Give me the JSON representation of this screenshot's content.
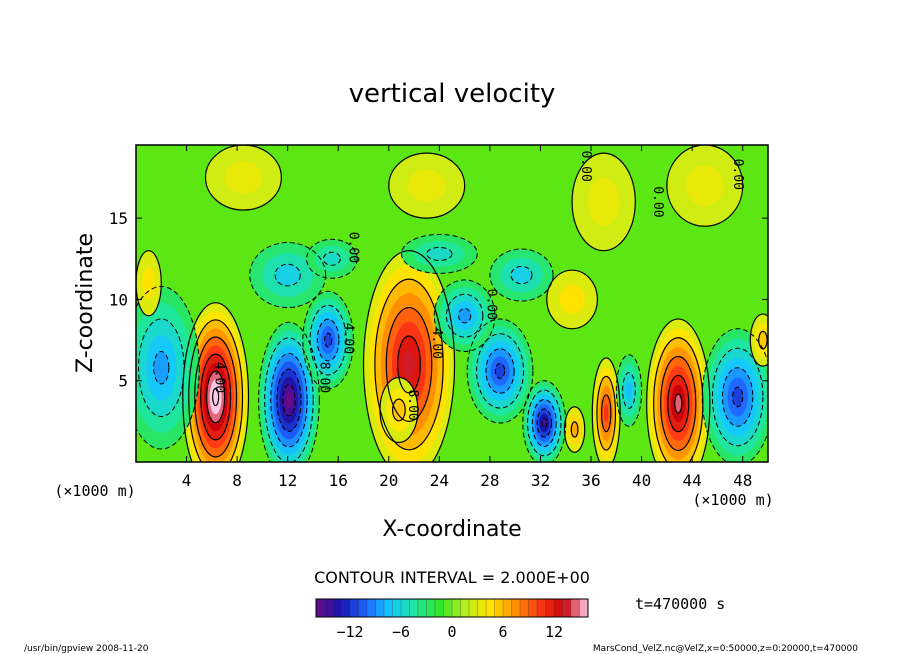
{
  "chart_data": {
    "type": "heatmap",
    "title": "vertical velocity",
    "xlabel": "X-coordinate",
    "ylabel": "Z-coordinate",
    "x_unit_left": "(×1000 m)",
    "x_unit_right": "(×1000 m)",
    "xlim": [
      0,
      50
    ],
    "ylim": [
      0,
      19.5
    ],
    "x_ticks": [
      4,
      8,
      12,
      16,
      20,
      24,
      28,
      32,
      36,
      40,
      44,
      48
    ],
    "y_ticks": [
      5,
      10,
      15
    ],
    "contour_interval_text": "CONTOUR INTERVAL = 2.000E+00",
    "contour_labels": [
      {
        "text": "4.00",
        "x": 6.3,
        "z": 5.2
      },
      {
        "text": "8.00",
        "x": 14.6,
        "z": 5.2
      },
      {
        "text": "4.00",
        "x": 16.5,
        "z": 7.6
      },
      {
        "text": "0.00",
        "x": 16.9,
        "z": 13.2
      },
      {
        "text": "4.00",
        "x": 23.5,
        "z": 7.3
      },
      {
        "text": "8.00",
        "x": 21.6,
        "z": 3.5
      },
      {
        "text": "0.00",
        "x": 27.8,
        "z": 9.7
      },
      {
        "text": "0.00",
        "x": 35.3,
        "z": 18.2
      },
      {
        "text": "0.00",
        "x": 41.0,
        "z": 16.0
      },
      {
        "text": "0.00",
        "x": 47.3,
        "z": 17.7
      }
    ],
    "cells": [
      {
        "x": 6.3,
        "z": 4.0,
        "rx": 2.6,
        "rz": 5.8,
        "amp": 16
      },
      {
        "x": 12.1,
        "z": 3.8,
        "rx": 2.4,
        "rz": 4.8,
        "amp": -15
      },
      {
        "x": 15.2,
        "z": 7.5,
        "rx": 2.0,
        "rz": 3.0,
        "amp": -10
      },
      {
        "x": 21.6,
        "z": 6.0,
        "rx": 3.6,
        "rz": 7.0,
        "amp": 12
      },
      {
        "x": 20.8,
        "z": 3.2,
        "rx": 1.5,
        "rz": 2.0,
        "amp": 4
      },
      {
        "x": 2.0,
        "z": 5.8,
        "rx": 3.0,
        "rz": 5.0,
        "amp": -7
      },
      {
        "x": 28.8,
        "z": 5.6,
        "rx": 2.6,
        "rz": 3.2,
        "amp": -10
      },
      {
        "x": 32.3,
        "z": 2.4,
        "rx": 1.7,
        "rz": 2.6,
        "amp": -13
      },
      {
        "x": 37.2,
        "z": 3.0,
        "rx": 1.1,
        "rz": 3.4,
        "amp": 9
      },
      {
        "x": 34.7,
        "z": 2.0,
        "rx": 0.8,
        "rz": 1.4,
        "amp": 5
      },
      {
        "x": 42.9,
        "z": 3.6,
        "rx": 2.5,
        "rz": 5.2,
        "amp": 13
      },
      {
        "x": 47.6,
        "z": 4.0,
        "rx": 2.8,
        "rz": 4.2,
        "amp": -10
      },
      {
        "x": 49.6,
        "z": 7.5,
        "rx": 1.0,
        "rz": 1.6,
        "amp": 4
      },
      {
        "x": 39.0,
        "z": 4.4,
        "rx": 1.0,
        "rz": 2.2,
        "amp": -6
      },
      {
        "x": 26.0,
        "z": 9.0,
        "rx": 2.4,
        "rz": 2.2,
        "amp": -7
      },
      {
        "x": 30.5,
        "z": 11.5,
        "rx": 2.5,
        "rz": 1.6,
        "amp": -5
      },
      {
        "x": 12.0,
        "z": 11.5,
        "rx": 3.0,
        "rz": 2.0,
        "amp": -5
      },
      {
        "x": 24.0,
        "z": 12.8,
        "rx": 3.0,
        "rz": 1.2,
        "amp": -4
      },
      {
        "x": 15.5,
        "z": 12.5,
        "rx": 2.0,
        "rz": 1.2,
        "amp": -4
      },
      {
        "x": 34.5,
        "z": 10.0,
        "rx": 2.0,
        "rz": 1.8,
        "amp": 3
      },
      {
        "x": 37.0,
        "z": 16.0,
        "rx": 2.5,
        "rz": 3.0,
        "amp": 2
      },
      {
        "x": 23.0,
        "z": 17.0,
        "rx": 3.0,
        "rz": 2.0,
        "amp": 2
      },
      {
        "x": 8.5,
        "z": 17.5,
        "rx": 3.0,
        "rz": 2.0,
        "amp": 2
      },
      {
        "x": 45.0,
        "z": 17.0,
        "rx": 3.0,
        "rz": 2.5,
        "amp": 2
      },
      {
        "x": 1.0,
        "z": 11.0,
        "rx": 1.0,
        "rz": 2.0,
        "amp": 3
      }
    ],
    "colorbar": {
      "ticks": [
        -12,
        -6,
        0,
        6,
        12
      ],
      "min": -16,
      "max": 16,
      "colors": [
        "#6a0a8a",
        "#1414aa",
        "#1e64ff",
        "#14c8ff",
        "#1ee6a0",
        "#32e628",
        "#b4f01e",
        "#ffe600",
        "#ff9600",
        "#ff3c14",
        "#c8000a",
        "#ffc8e6"
      ]
    },
    "time_label": "t=470000 s",
    "footer_left": "/usr/bin/gpview  2008-11-20",
    "footer_right": "MarsCond_VelZ.nc@VelZ,x=0:50000,z=0:20000,t=470000"
  }
}
